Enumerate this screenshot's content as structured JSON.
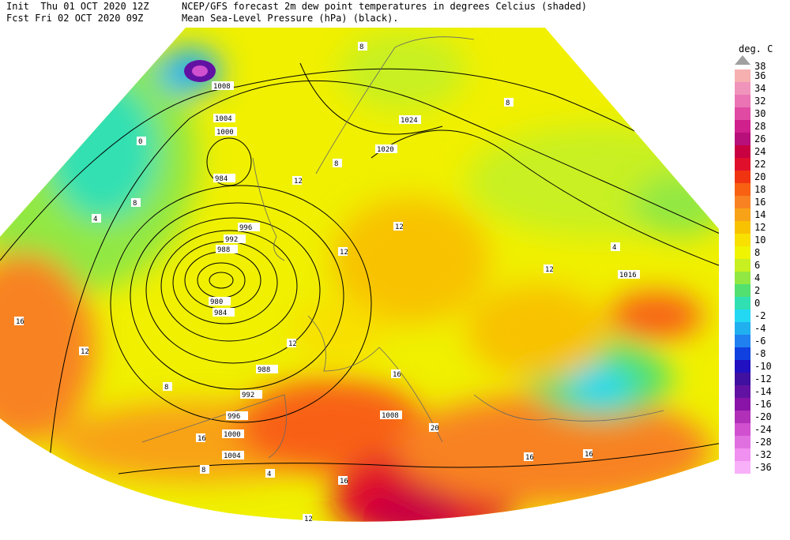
{
  "header": {
    "init": "Init  Thu 01 OCT 2020 12Z",
    "fcst": "Fcst Fri 02 OCT 2020 09Z",
    "title": "NCEP/GFS forecast 2m dew point temperatures in degrees Celcius (shaded)",
    "subtitle": "Mean Sea-Level Pressure (hPa) (black)."
  },
  "legend": {
    "title": "deg. C",
    "top": "38",
    "levels": [
      {
        "label": "36",
        "color": "#f6b0b0"
      },
      {
        "label": "34",
        "color": "#f094bc"
      },
      {
        "label": "32",
        "color": "#ea74b4"
      },
      {
        "label": "30",
        "color": "#e04aa2"
      },
      {
        "label": "28",
        "color": "#d0208c"
      },
      {
        "label": "26",
        "color": "#b8107a"
      },
      {
        "label": "24",
        "color": "#c80042"
      },
      {
        "label": "22",
        "color": "#e0102c"
      },
      {
        "label": "20",
        "color": "#f03412"
      },
      {
        "label": "18",
        "color": "#f86012"
      },
      {
        "label": "16",
        "color": "#f88222"
      },
      {
        "label": "14",
        "color": "#f8a218"
      },
      {
        "label": "12",
        "color": "#f8c200"
      },
      {
        "label": "10",
        "color": "#f8e000"
      },
      {
        "label": "8",
        "color": "#f0f400"
      },
      {
        "label": "6",
        "color": "#c8f020"
      },
      {
        "label": "4",
        "color": "#92e842"
      },
      {
        "label": "2",
        "color": "#52e070"
      },
      {
        "label": "0",
        "color": "#30e0b2"
      },
      {
        "label": "-2",
        "color": "#22d8f2"
      },
      {
        "label": "-4",
        "color": "#20b0f0"
      },
      {
        "label": "-6",
        "color": "#2080f0"
      },
      {
        "label": "-8",
        "color": "#1040e0"
      },
      {
        "label": "-10",
        "color": "#2010c0"
      },
      {
        "label": "-12",
        "color": "#4010a0"
      },
      {
        "label": "-14",
        "color": "#6212a2"
      },
      {
        "label": "-16",
        "color": "#8a14a8"
      },
      {
        "label": "-20",
        "color": "#b030b8"
      },
      {
        "label": "-24",
        "color": "#d050d0"
      },
      {
        "label": "-28",
        "color": "#e070e0"
      },
      {
        "label": "-32",
        "color": "#f090f0"
      },
      {
        "label": "-36",
        "color": "#f8b0f8"
      }
    ]
  },
  "isobar_labels": [
    "1008",
    "1004",
    "1000",
    "984",
    "996",
    "992",
    "988",
    "980",
    "984",
    "988",
    "992",
    "996",
    "1000",
    "1004",
    "1008",
    "1024",
    "1020",
    "1016"
  ],
  "contour_labels": [
    "8",
    "0",
    "8",
    "4",
    "12",
    "8",
    "12",
    "16",
    "12",
    "16",
    "8",
    "12",
    "16",
    "20",
    "16",
    "16",
    "4",
    "8",
    "12",
    "12",
    "16",
    "12",
    "8",
    "4"
  ]
}
